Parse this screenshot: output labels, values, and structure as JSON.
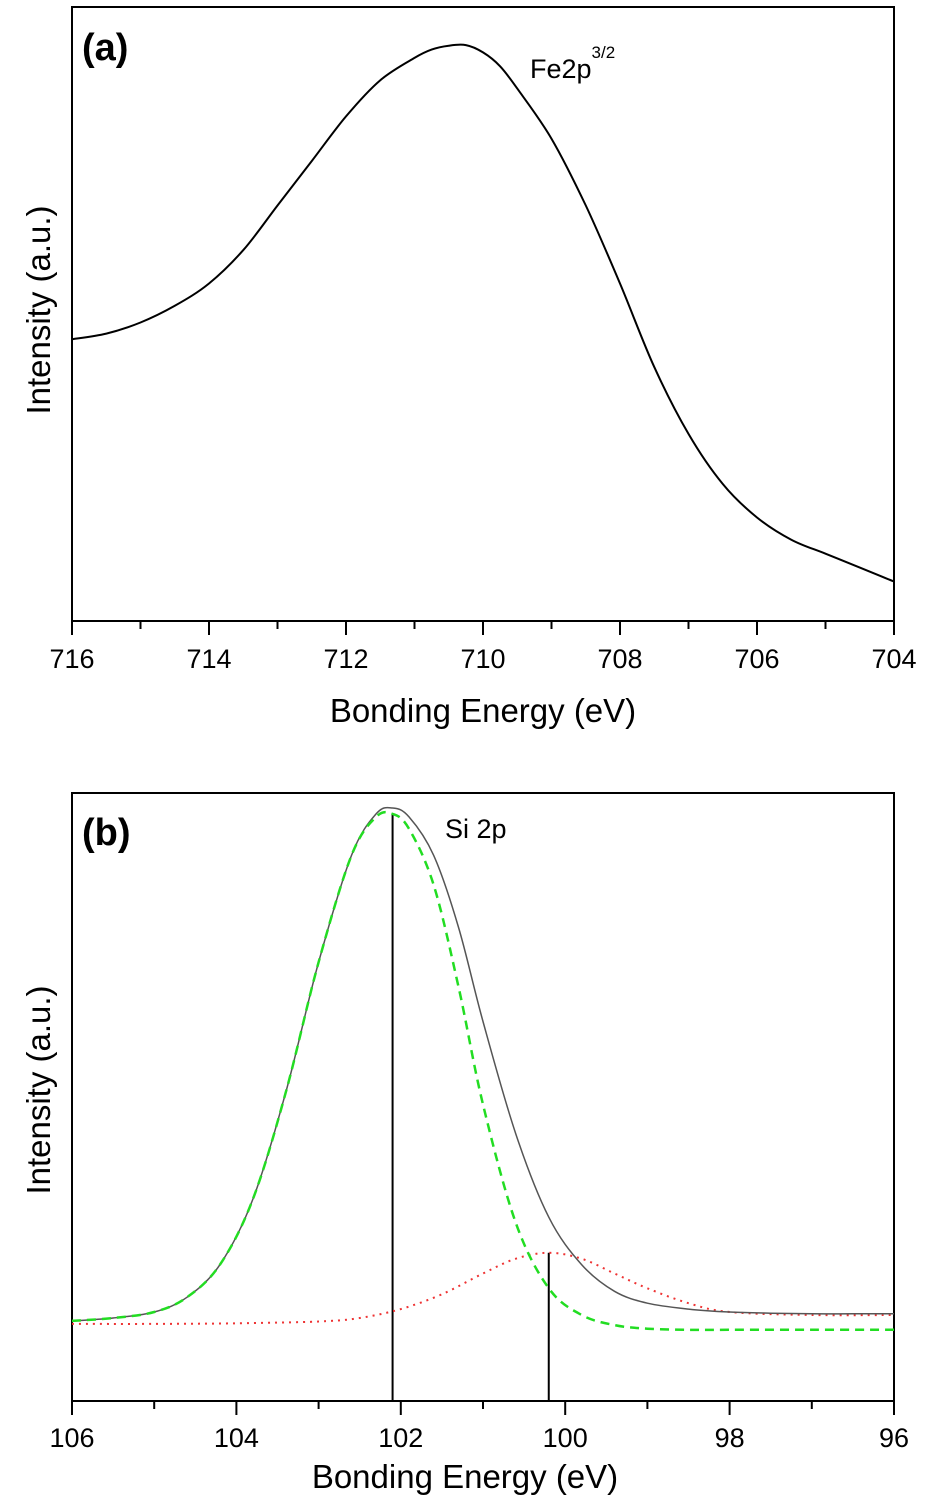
{
  "chart_data": [
    {
      "type": "line",
      "panel_label": "(a)",
      "title": "",
      "xlabel": "Bonding Energy (eV)",
      "ylabel": "Intensity (a.u.)",
      "xlim": [
        716,
        704
      ],
      "x_reversed": true,
      "y_ticks_shown": false,
      "ylim": [
        0,
        1
      ],
      "xticks": [
        716,
        714,
        712,
        710,
        708,
        706,
        704
      ],
      "xtick_labels": [
        "716",
        "714",
        "712",
        "710",
        "708",
        "706",
        "704"
      ],
      "annotation": {
        "text": "Fe2p",
        "superscript": "3/2",
        "x": 708.9
      },
      "grid": false,
      "series": [
        {
          "color": "#000000",
          "style": "solid",
          "x": [
            716,
            715.5,
            715,
            714.5,
            714,
            713.5,
            713,
            712.5,
            712,
            711.5,
            711,
            710.75,
            710.5,
            710.25,
            710,
            709.75,
            709.5,
            709,
            708.5,
            708,
            707.5,
            707,
            706.5,
            706,
            705.5,
            705,
            704.5,
            704.2,
            704
          ],
          "y": [
            0.47,
            0.48,
            0.5,
            0.53,
            0.57,
            0.63,
            0.71,
            0.79,
            0.87,
            0.935,
            0.975,
            0.99,
            0.997,
            0.998,
            0.985,
            0.96,
            0.92,
            0.83,
            0.71,
            0.57,
            0.42,
            0.3,
            0.21,
            0.15,
            0.11,
            0.085,
            0.06,
            0.045,
            0.035
          ]
        }
      ]
    },
    {
      "type": "line",
      "panel_label": "(b)",
      "title": "",
      "xlabel": "Bonding Energy (eV)",
      "ylabel": "Intensity (a.u.)",
      "xlim": [
        106,
        96
      ],
      "x_reversed": true,
      "y_ticks_shown": false,
      "ylim": [
        0,
        1
      ],
      "xticks": [
        106,
        104,
        102,
        100,
        98,
        96
      ],
      "xtick_labels": [
        "106",
        "104",
        "102",
        "100",
        "98",
        "96"
      ],
      "annotation": {
        "text": "Si 2p",
        "x": 101.2
      },
      "grid": false,
      "series": [
        {
          "color": "#555555",
          "style": "solid",
          "x": [
            106,
            105.5,
            105,
            104.6,
            104.2,
            103.8,
            103.4,
            103,
            102.6,
            102.3,
            102.1,
            101.9,
            101.6,
            101.3,
            101,
            100.6,
            100.2,
            99.8,
            99.4,
            99,
            98.5,
            98,
            97.5,
            97,
            96.5,
            96
          ],
          "y": [
            0.135,
            0.14,
            0.15,
            0.175,
            0.23,
            0.34,
            0.52,
            0.74,
            0.92,
            0.99,
            1.0,
            0.985,
            0.92,
            0.8,
            0.64,
            0.45,
            0.31,
            0.23,
            0.185,
            0.165,
            0.155,
            0.15,
            0.148,
            0.147,
            0.147,
            0.147
          ]
        },
        {
          "color": "#22dd22",
          "style": "dashed",
          "x": [
            106,
            105.5,
            105,
            104.6,
            104.2,
            103.8,
            103.4,
            103,
            102.6,
            102.3,
            102.1,
            101.9,
            101.6,
            101.3,
            101,
            100.6,
            100.2,
            99.8,
            99.4,
            99,
            98.5,
            98,
            97,
            96
          ],
          "y": [
            0.135,
            0.14,
            0.15,
            0.175,
            0.23,
            0.34,
            0.52,
            0.74,
            0.92,
            0.985,
            0.99,
            0.965,
            0.87,
            0.7,
            0.5,
            0.3,
            0.19,
            0.145,
            0.128,
            0.122,
            0.12,
            0.12,
            0.12,
            0.12
          ]
        },
        {
          "color": "#ee3333",
          "style": "dotted",
          "x": [
            106,
            105,
            104,
            103,
            102.5,
            102,
            101.5,
            101,
            100.6,
            100.2,
            99.8,
            99.4,
            99,
            98.5,
            98,
            97,
            96
          ],
          "y": [
            0.13,
            0.13,
            0.131,
            0.134,
            0.14,
            0.155,
            0.18,
            0.215,
            0.24,
            0.25,
            0.24,
            0.215,
            0.19,
            0.165,
            0.15,
            0.145,
            0.145
          ]
        }
      ],
      "peak_markers": [
        {
          "x": 102.1,
          "y": 0.99
        },
        {
          "x": 100.2,
          "y": 0.25
        }
      ]
    }
  ]
}
